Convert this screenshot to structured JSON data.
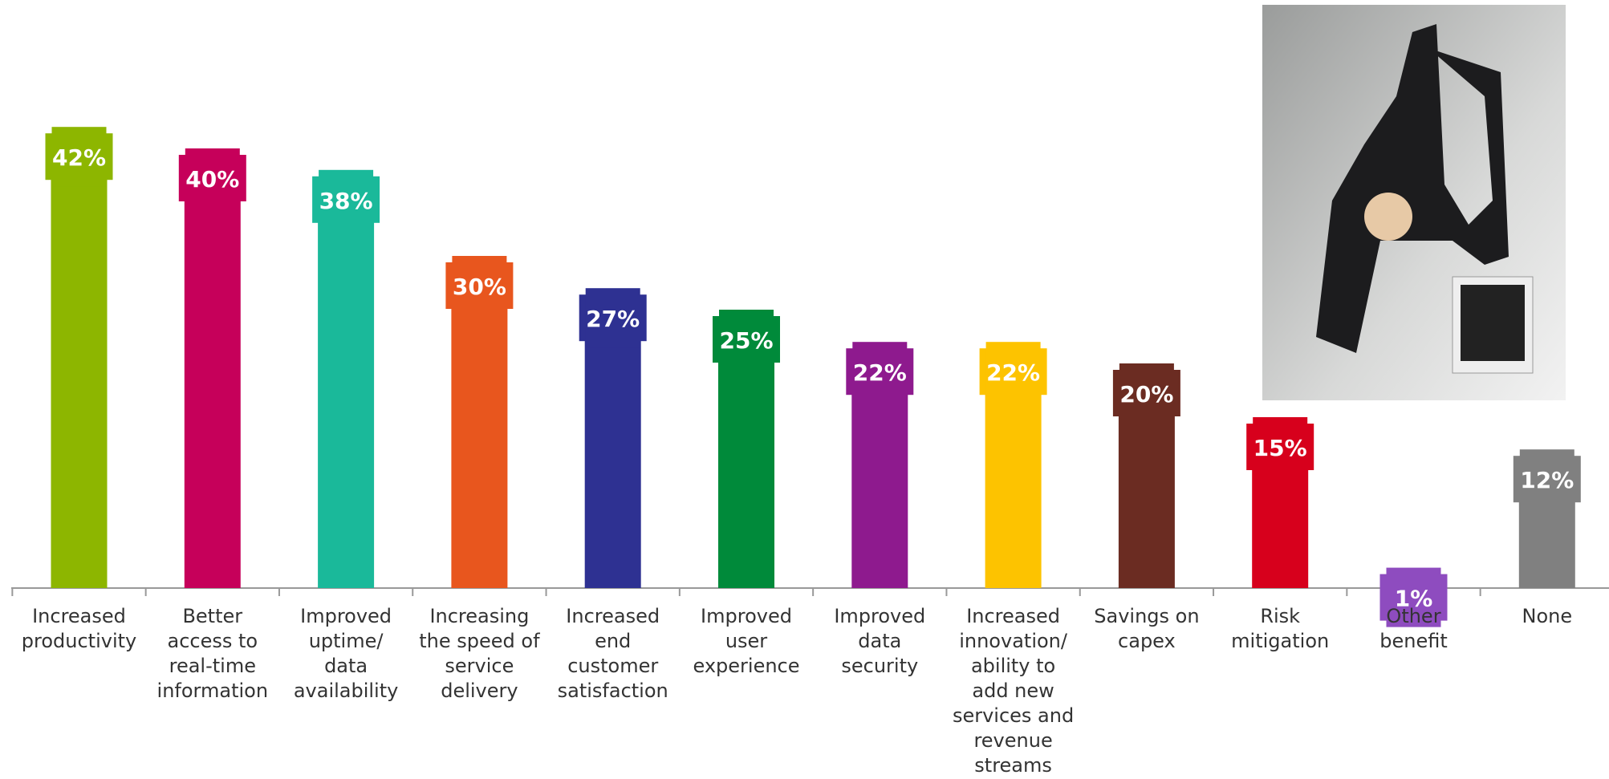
{
  "chart_data": {
    "type": "bar",
    "categories": [
      "Increased\nproductivity",
      "Better\naccess to\nreal-time\ninformation",
      "Improved\nuptime/\ndata\navailability",
      "Increasing\nthe speed of\nservice\ndelivery",
      "Increased\nend\ncustomer\nsatisfaction",
      "Improved\nuser\nexperience",
      "Improved\ndata\nsecurity",
      "Increased\ninnovation/\nability to\nadd new\nservices and\nrevenue\nstreams",
      "Savings on\ncapex",
      "Risk\nmitigation",
      "Other\nbenefit",
      "None"
    ],
    "values": [
      42,
      40,
      38,
      30,
      27,
      25,
      22,
      22,
      20,
      15,
      1,
      12
    ],
    "value_labels": [
      "42%",
      "40%",
      "38%",
      "30%",
      "27%",
      "25%",
      "22%",
      "22%",
      "20%",
      "15%",
      "1%",
      "12%"
    ],
    "colors": [
      "#8db600",
      "#c6005a",
      "#1ab99a",
      "#e8561e",
      "#2e3192",
      "#008a3a",
      "#8e1a8e",
      "#fdc300",
      "#6b2c22",
      "#d7001c",
      "#8e4cbf",
      "#808080"
    ]
  }
}
